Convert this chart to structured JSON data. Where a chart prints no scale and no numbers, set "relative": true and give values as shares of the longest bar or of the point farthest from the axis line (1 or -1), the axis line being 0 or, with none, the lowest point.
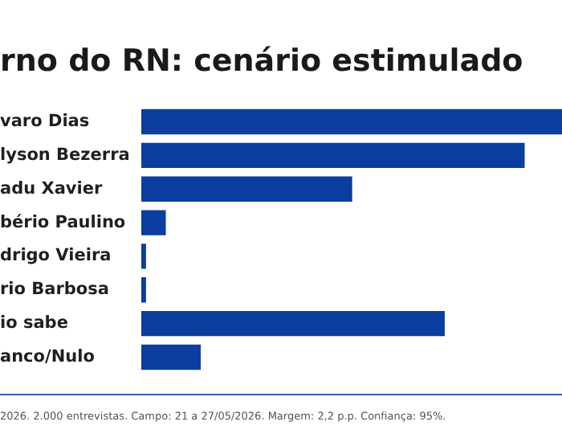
{
  "chart_data": {
    "type": "bar",
    "orientation": "horizontal",
    "relative": true,
    "title": "rno do RN: cenário estimulado",
    "categories": [
      "varo Dias",
      "lyson Bezerra",
      "adu Xavier",
      "bério Paulino",
      "drigo Vieira",
      "rio Barbosa",
      "io sabe",
      "anco/Nulo"
    ],
    "values": [
      1,
      0.91,
      0.5,
      0.057,
      0.01,
      0.01,
      0.72,
      0.14
    ],
    "color": "#0b3ea0",
    "grid": false,
    "legend": false,
    "annotations": [
      "2026. 2.000 entrevistas. Campo: 21 a 27/05/2026. Margem: 2,2 p.p. Confiança: 95%."
    ]
  }
}
